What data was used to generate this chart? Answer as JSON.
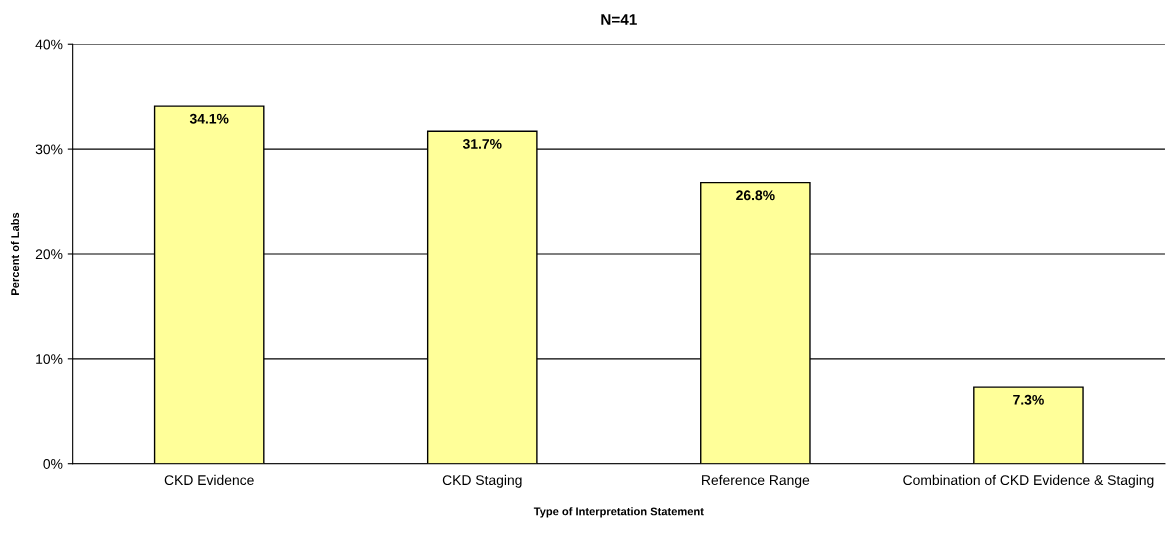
{
  "chart_data": {
    "type": "bar",
    "title": "N=41",
    "xlabel": "Type of Interpretation Statement",
    "ylabel": "Percent of Labs",
    "categories": [
      "CKD Evidence",
      "CKD Staging",
      "Reference Range",
      "Combination of CKD Evidence & Staging"
    ],
    "values": [
      34.1,
      31.7,
      26.8,
      7.3
    ],
    "value_labels": [
      "34.1%",
      "31.7%",
      "26.8%",
      "7.3%"
    ],
    "color": "#ffff99",
    "ylim": [
      0,
      40
    ],
    "yticks": [
      {
        "value": 0,
        "label": "0%"
      },
      {
        "value": 10,
        "label": "10%"
      },
      {
        "value": 20,
        "label": "20%"
      },
      {
        "value": 30,
        "label": "30%"
      },
      {
        "value": 40,
        "label": "40%"
      }
    ],
    "grid": "y",
    "legend": false
  }
}
